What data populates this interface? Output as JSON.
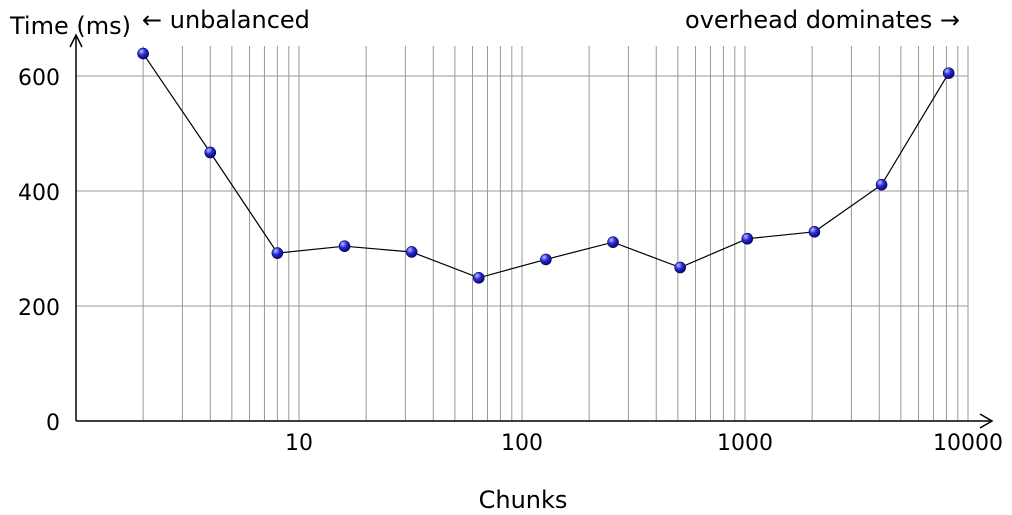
{
  "chart_data": {
    "type": "line",
    "title": "",
    "xlabel": "Chunks",
    "ylabel": "Time (ms)",
    "x_scale": "log",
    "xlim": [
      1,
      10000
    ],
    "ylim": [
      0,
      600
    ],
    "x_ticks": [
      10,
      100,
      1000,
      10000
    ],
    "x_tick_labels": [
      "10",
      "100",
      "1000",
      "10000"
    ],
    "y_ticks": [
      0,
      200,
      400,
      600
    ],
    "y_tick_labels": [
      "0",
      "200",
      "400",
      "600"
    ],
    "grid": true,
    "annotations": {
      "left": "← unbalanced",
      "right": "overhead dominates →"
    },
    "series": [
      {
        "x": [
          2,
          4,
          8,
          16,
          32,
          64,
          128,
          256,
          512,
          1024,
          2048,
          4096,
          8192
        ],
        "y": [
          639,
          467,
          292,
          304,
          294,
          249,
          281,
          311,
          267,
          317,
          329,
          411,
          605
        ]
      }
    ],
    "colors": {
      "marker": "#1a1ad0",
      "line": "#000000",
      "grid": "#999999"
    }
  }
}
